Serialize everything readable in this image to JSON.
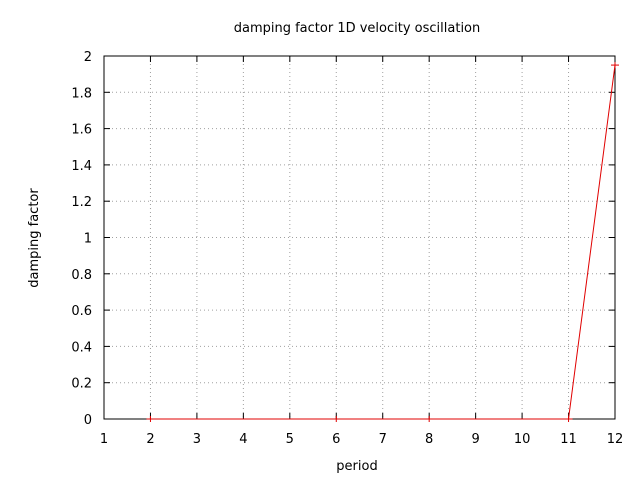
{
  "chart_data": {
    "type": "line",
    "title": "damping factor 1D velocity oscillation",
    "xlabel": "period",
    "ylabel": "damping factor",
    "xlim": [
      1,
      12
    ],
    "ylim": [
      0,
      2
    ],
    "x_ticks": [
      "1",
      "2",
      "3",
      "4",
      "5",
      "6",
      "7",
      "8",
      "9",
      "10",
      "11",
      "12"
    ],
    "y_ticks": [
      "0",
      "0.2",
      "0.4",
      "0.6",
      "0.8",
      "1",
      "1.2",
      "1.4",
      "1.6",
      "1.8",
      "2"
    ],
    "grid": true,
    "series": [
      {
        "color": "#e00000",
        "x": [
          2,
          6,
          8,
          11,
          12
        ],
        "y": [
          0,
          0,
          0,
          0,
          1.95
        ]
      }
    ]
  }
}
